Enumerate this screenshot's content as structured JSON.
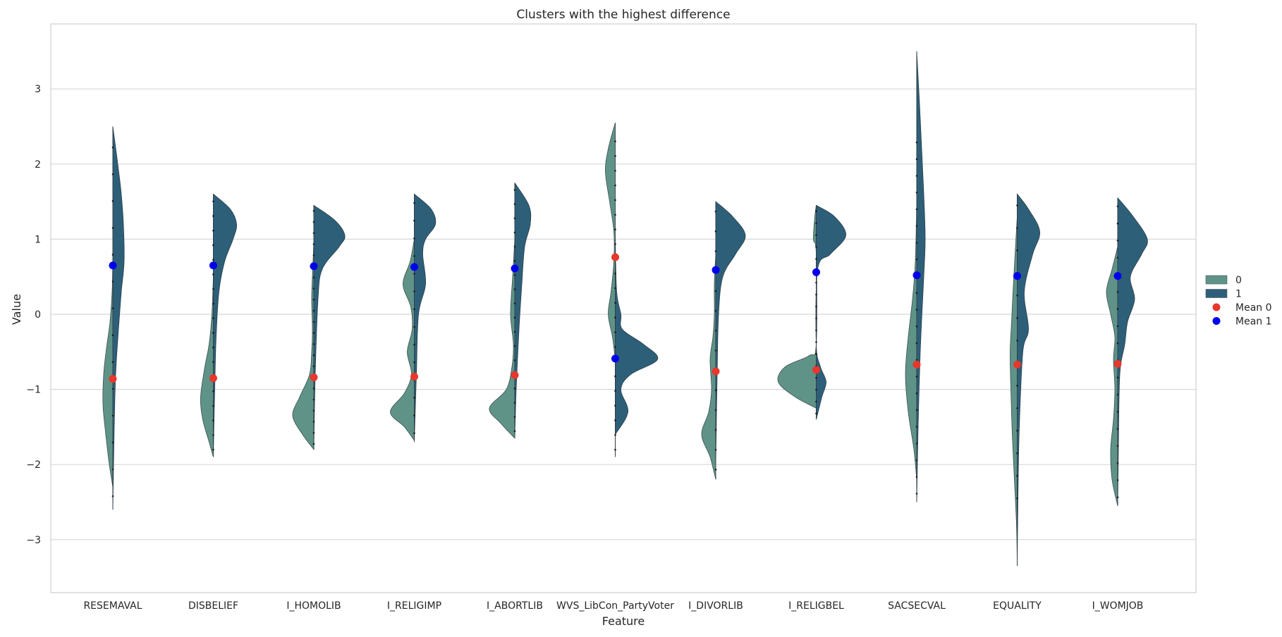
{
  "chart_data": {
    "type": "violin",
    "title": "Clusters with the highest difference",
    "xlabel": "Feature",
    "ylabel": "Value",
    "ylim": [
      -3.7,
      3.9
    ],
    "yticks": [
      -3,
      -2,
      -1,
      0,
      1,
      2,
      3
    ],
    "ytick_labels": [
      "−3",
      "−2",
      "−1",
      "0",
      "1",
      "2",
      "3"
    ],
    "grid": true,
    "legend_position": "right",
    "categories": [
      "RESEMAVAL",
      "DISBELIEF",
      "I_HOMOLIB",
      "I_RELIGIMP",
      "I_ABORTLIB",
      "WVS_LibCon_PartyVoter",
      "I_DIVORLIB",
      "I_RELIGBEL",
      "SACSECVAL",
      "EQUALITY",
      "I_WOMJOB"
    ],
    "series": [
      {
        "name": "0",
        "color": "#5f9387"
      },
      {
        "name": "1",
        "color": "#2e5f79"
      }
    ],
    "means": [
      {
        "name": "Mean 0",
        "color": "#e8372c",
        "values": [
          -0.86,
          -0.85,
          -0.84,
          -0.83,
          -0.81,
          0.76,
          -0.76,
          -0.74,
          -0.67,
          -0.67,
          -0.66
        ]
      },
      {
        "name": "Mean 1",
        "color": "#0000ee",
        "values": [
          0.65,
          0.65,
          0.64,
          0.63,
          0.61,
          -0.59,
          0.59,
          0.56,
          0.52,
          0.51,
          0.51
        ]
      }
    ],
    "extents": [
      [
        -2.6,
        2.5
      ],
      [
        -1.9,
        1.6
      ],
      [
        -1.8,
        1.45
      ],
      [
        -1.7,
        1.6
      ],
      [
        -1.65,
        1.75
      ],
      [
        -1.9,
        2.55
      ],
      [
        -2.2,
        1.5
      ],
      [
        -1.4,
        1.45
      ],
      [
        -2.5,
        3.5
      ],
      [
        -3.35,
        1.6
      ],
      [
        -2.55,
        1.55
      ]
    ],
    "legend": [
      "0",
      "1",
      "Mean 0",
      "Mean 1"
    ]
  }
}
